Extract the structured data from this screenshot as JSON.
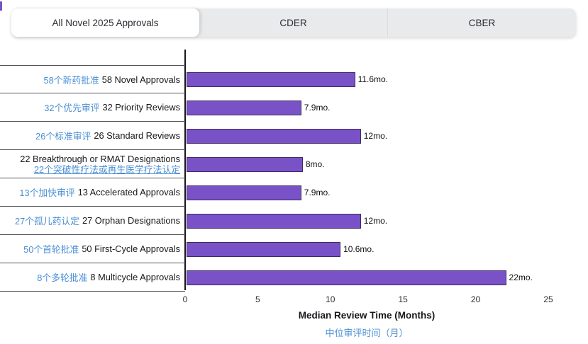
{
  "accent_color": "#7a52c8",
  "link_color": "#4a8fd4",
  "tabs": [
    {
      "label": "All Novel 2025 Approvals",
      "active": true
    },
    {
      "label": "CDER",
      "active": false
    },
    {
      "label": "CBER",
      "active": false
    }
  ],
  "chart_data": {
    "type": "bar",
    "orientation": "horizontal",
    "title": "",
    "xlabel": "Median Review Time (Months)",
    "xlabel_zh": "中位审评时间（月）",
    "xlim": [
      0,
      25
    ],
    "xticks": [
      0,
      5,
      10,
      15,
      20,
      25
    ],
    "grid": false,
    "bar_color": "#7a52c8",
    "categories": [
      "58个新药批准 58 Novel Approvals",
      "32个优先审评 32 Priority Reviews",
      "26个标准审评 26 Standard Reviews",
      "22 Breakthrough or RMAT Designations 22个突破性疗法或再生医学疗法认定",
      "13个加快审评 13 Accelerated Approvals",
      "27个孤儿药认定 27 Orphan Designations",
      "50个首轮批准 50 First-Cycle Approvals",
      "8个多轮批准 8 Multicycle Approvals"
    ],
    "values": [
      11.6,
      7.9,
      12,
      8,
      7.9,
      12,
      10.6,
      22
    ],
    "rows": [
      {
        "zh": "58个新药批准",
        "en": "58 Novel Approvals",
        "value": 11.6,
        "value_label": "11.6mo."
      },
      {
        "zh": "32个优先审评",
        "en": "32 Priority Reviews",
        "value": 7.9,
        "value_label": "7.9mo."
      },
      {
        "zh": "26个标准审评",
        "en": "26 Standard Reviews",
        "value": 12,
        "value_label": "12mo."
      },
      {
        "zh": "22个突破性疗法或再生医学疗法认定",
        "en": "22 Breakthrough or RMAT Designations",
        "value": 8,
        "value_label": "8mo.",
        "en_first": true,
        "zh_underline": true
      },
      {
        "zh": "13个加快审评",
        "en": "13 Accelerated Approvals",
        "value": 7.9,
        "value_label": "7.9mo."
      },
      {
        "zh": "27个孤儿药认定",
        "en": "27 Orphan Designations",
        "value": 12,
        "value_label": "12mo."
      },
      {
        "zh": "50个首轮批准",
        "en": "50 First-Cycle Approvals",
        "value": 10.6,
        "value_label": "10.6mo."
      },
      {
        "zh": "8个多轮批准",
        "en": "8 Multicycle Approvals",
        "value": 22,
        "value_label": "22mo."
      }
    ]
  }
}
